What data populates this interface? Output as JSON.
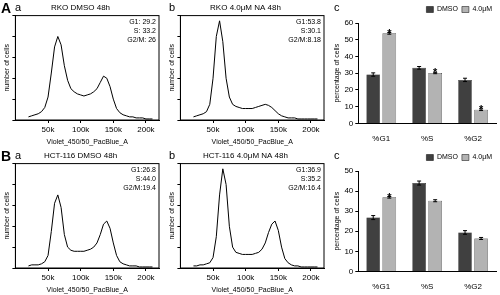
{
  "chart_data": [
    {
      "type": "line",
      "figure_label": "A",
      "panel": "a",
      "title": "RKO DMSO 48h",
      "x_label": "Violet_450/50_PacBlue_A",
      "y_label": "number of cells",
      "grid": false,
      "tick_labels": "x",
      "color": "#000000",
      "xlim": [
        0,
        220000
      ],
      "xticks": [
        {
          "value": 50000,
          "label": "50k"
        },
        {
          "value": 100000,
          "label": "100k"
        },
        {
          "value": 150000,
          "label": "150k"
        },
        {
          "value": 200000,
          "label": "200k"
        }
      ],
      "ylim": [
        0,
        100
      ],
      "yticks": [
        0,
        20,
        40,
        60,
        80,
        100
      ],
      "x": [
        20000,
        25000,
        30000,
        35000,
        40000,
        45000,
        50000,
        55000,
        60000,
        65000,
        70000,
        75000,
        80000,
        85000,
        90000,
        95000,
        100000,
        105000,
        110000,
        115000,
        120000,
        125000,
        130000,
        135000,
        140000,
        145000,
        150000,
        155000,
        160000,
        165000,
        170000,
        175000,
        180000,
        185000,
        190000,
        195000,
        200000,
        205000,
        210000
      ],
      "values": [
        3,
        4,
        5,
        6,
        8,
        12,
        22,
        45,
        70,
        80,
        72,
        52,
        38,
        30,
        27,
        25,
        24,
        23,
        24,
        25,
        27,
        30,
        36,
        42,
        40,
        32,
        20,
        11,
        7,
        5,
        4,
        3,
        3,
        2,
        2,
        2,
        1,
        1,
        1
      ],
      "annotations": [
        "G1: 29.2",
        "S: 33.2",
        "G2/M: 26"
      ]
    },
    {
      "type": "line",
      "panel": "b",
      "title": "RKO 4.0μM NA 48h",
      "x_label": "Violet_450/50_PacBlue_A",
      "y_label": "number of cells",
      "grid": false,
      "tick_labels": "x",
      "color": "#000000",
      "xlim": [
        0,
        220000
      ],
      "xticks": [
        {
          "value": 50000,
          "label": "50k"
        },
        {
          "value": 100000,
          "label": "100k"
        },
        {
          "value": 150000,
          "label": "150k"
        },
        {
          "value": 200000,
          "label": "200k"
        }
      ],
      "ylim": [
        0,
        100
      ],
      "yticks": [
        0,
        20,
        40,
        60,
        80,
        100
      ],
      "x": [
        20000,
        25000,
        30000,
        35000,
        40000,
        45000,
        50000,
        55000,
        60000,
        65000,
        70000,
        75000,
        80000,
        85000,
        90000,
        95000,
        100000,
        105000,
        110000,
        115000,
        120000,
        125000,
        130000,
        135000,
        140000,
        145000,
        150000,
        155000,
        160000,
        165000,
        170000,
        175000,
        180000,
        185000,
        190000,
        195000,
        200000,
        205000,
        210000
      ],
      "values": [
        3,
        4,
        5,
        6,
        8,
        15,
        40,
        80,
        95,
        75,
        40,
        22,
        15,
        13,
        12,
        11,
        11,
        11,
        11,
        12,
        13,
        14,
        15,
        14,
        12,
        9,
        6,
        4,
        3,
        2,
        2,
        2,
        1,
        1,
        1,
        1,
        1,
        1,
        1
      ],
      "annotations": [
        "G1:53.8",
        "S:30.1",
        "G2/M:8.18"
      ]
    },
    {
      "type": "bar",
      "panel": "c",
      "y_label": "percentage of cells",
      "grid": false,
      "legend": "top-right",
      "categories": [
        "%G1",
        "%S",
        "%G2"
      ],
      "ylim": [
        0,
        60
      ],
      "yticks": [
        0,
        10,
        20,
        30,
        40,
        50,
        60
      ],
      "series": [
        {
          "name": "DMSO",
          "color": "#404040",
          "values": [
            29.2,
            33.2,
            26
          ],
          "errors": [
            1.0,
            0.8,
            1.0
          ]
        },
        {
          "name": "4.0μM",
          "color": "#b3b3b3",
          "values": [
            53.8,
            30.1,
            8.18
          ],
          "errors": [
            0.5,
            0.4,
            0.5
          ]
        }
      ],
      "annotations": [
        {
          "text": "*",
          "category": "%G1",
          "series": "4.0μM"
        },
        {
          "text": "*",
          "category": "%S",
          "series": "4.0μM"
        },
        {
          "text": "*",
          "category": "%G2",
          "series": "4.0μM"
        }
      ]
    },
    {
      "type": "line",
      "figure_label": "B",
      "panel": "a",
      "title": "HCT-116 DMSO 48h",
      "x_label": "Violet_450/50_PacBlue_A",
      "y_label": "number of cells",
      "grid": false,
      "tick_labels": "x",
      "color": "#000000",
      "xlim": [
        0,
        220000
      ],
      "xticks": [
        {
          "value": 50000,
          "label": "50k"
        },
        {
          "value": 100000,
          "label": "100k"
        },
        {
          "value": 150000,
          "label": "150k"
        },
        {
          "value": 200000,
          "label": "200k"
        }
      ],
      "ylim": [
        0,
        100
      ],
      "yticks": [
        0,
        20,
        40,
        60,
        80,
        100
      ],
      "x": [
        20000,
        25000,
        30000,
        35000,
        40000,
        45000,
        50000,
        55000,
        60000,
        65000,
        70000,
        75000,
        80000,
        85000,
        90000,
        95000,
        100000,
        105000,
        110000,
        115000,
        120000,
        125000,
        130000,
        135000,
        140000,
        145000,
        150000,
        155000,
        160000,
        165000,
        170000,
        175000,
        180000,
        185000,
        190000,
        195000,
        200000,
        205000,
        210000
      ],
      "values": [
        2,
        3,
        3,
        3,
        4,
        6,
        12,
        35,
        62,
        70,
        58,
        32,
        20,
        17,
        16,
        16,
        16,
        16,
        17,
        18,
        20,
        24,
        32,
        42,
        45,
        38,
        24,
        12,
        6,
        4,
        3,
        2,
        2,
        2,
        1,
        1,
        1,
        1,
        1
      ],
      "annotations": [
        "G1:26.8",
        "S:44.0",
        "G2/M:19.4"
      ]
    },
    {
      "type": "line",
      "panel": "b",
      "title": "HCT-116 4.0μM NA 48h",
      "x_label": "Violet_450/50_PacBlue_A",
      "y_label": "number of cells",
      "grid": false,
      "tick_labels": "x",
      "color": "#000000",
      "xlim": [
        0,
        220000
      ],
      "xticks": [
        {
          "value": 50000,
          "label": "50k"
        },
        {
          "value": 100000,
          "label": "100k"
        },
        {
          "value": 150000,
          "label": "150k"
        },
        {
          "value": 200000,
          "label": "200k"
        }
      ],
      "ylim": [
        0,
        100
      ],
      "yticks": [
        0,
        20,
        40,
        60,
        80,
        100
      ],
      "x": [
        20000,
        25000,
        30000,
        35000,
        40000,
        45000,
        50000,
        55000,
        60000,
        65000,
        70000,
        75000,
        80000,
        85000,
        90000,
        95000,
        100000,
        105000,
        110000,
        115000,
        120000,
        125000,
        130000,
        135000,
        140000,
        145000,
        150000,
        155000,
        160000,
        165000,
        170000,
        175000,
        180000,
        185000,
        190000,
        195000,
        200000,
        205000,
        210000
      ],
      "values": [
        2,
        2,
        3,
        3,
        4,
        5,
        10,
        30,
        70,
        95,
        80,
        40,
        20,
        15,
        14,
        13,
        13,
        13,
        13,
        14,
        15,
        18,
        24,
        34,
        42,
        45,
        36,
        20,
        9,
        5,
        3,
        2,
        2,
        1,
        1,
        1,
        1,
        1,
        1
      ],
      "annotations": [
        "G1:36.9",
        "S:35.2",
        "G2/M:16.4"
      ]
    },
    {
      "type": "bar",
      "panel": "c",
      "y_label": "percentage of cells",
      "grid": false,
      "legend": "top-right",
      "categories": [
        "%G1",
        "%S",
        "%G2"
      ],
      "ylim": [
        0,
        50
      ],
      "yticks": [
        0,
        10,
        20,
        30,
        40,
        50
      ],
      "series": [
        {
          "name": "DMSO",
          "color": "#404040",
          "values": [
            26.8,
            44.0,
            19.4
          ],
          "errors": [
            1.0,
            1.0,
            0.9
          ]
        },
        {
          "name": "4.0μM",
          "color": "#b3b3b3",
          "values": [
            36.9,
            35.2,
            16.4
          ],
          "errors": [
            0.4,
            0.5,
            0.5
          ]
        }
      ],
      "annotations": [
        {
          "text": "*",
          "category": "%G1",
          "series": "4.0μM"
        }
      ]
    }
  ]
}
